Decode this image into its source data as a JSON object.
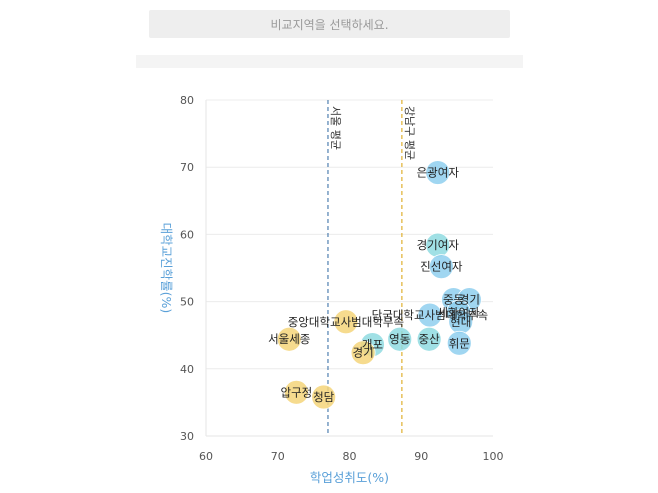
{
  "region_select": {
    "placeholder": "비교지역을 선택하세요."
  },
  "chart_data": {
    "type": "scatter",
    "xlabel": "학업성취도(%)",
    "ylabel": "대학교진학률(%)",
    "xlim": [
      60,
      100
    ],
    "ylim": [
      30,
      80
    ],
    "xticks": [
      60,
      70,
      80,
      90,
      100
    ],
    "yticks": [
      30,
      40,
      50,
      60,
      70,
      80
    ],
    "grid": "horizontal",
    "reference_lines": [
      {
        "label": "서울 평균",
        "x": 77,
        "color": "#4f7fb0"
      },
      {
        "label": "강남구 평균",
        "x": 87.3,
        "color": "#e0b030"
      }
    ],
    "points": [
      {
        "label": "은광여자",
        "x": 92.3,
        "y": 69.2,
        "color": "#8fcfee"
      },
      {
        "label": "경기여자",
        "x": 92.3,
        "y": 58.4,
        "color": "#8fdbe0"
      },
      {
        "label": "진선여자",
        "x": 92.8,
        "y": 55.2,
        "color": "#8fcfee"
      },
      {
        "label": "중동",
        "x": 94.5,
        "y": 50.3,
        "color": "#8fcfee"
      },
      {
        "label": "경기",
        "x": 96.7,
        "y": 50.3,
        "color": "#8fcfee"
      },
      {
        "label": "세화여자",
        "x": 95.2,
        "y": 48.4,
        "color": "#8fcfee"
      },
      {
        "label": "단국대학교사범대학부속",
        "x": 91.2,
        "y": 48.0,
        "color": "#8fcfee"
      },
      {
        "label": "현대",
        "x": 95.5,
        "y": 47.0,
        "color": "#8fcfee"
      },
      {
        "label": "영동",
        "x": 87.0,
        "y": 44.4,
        "color": "#8fdbe0"
      },
      {
        "label": "중산",
        "x": 91.1,
        "y": 44.4,
        "color": "#8fdbe0"
      },
      {
        "label": "휘문",
        "x": 95.3,
        "y": 43.8,
        "color": "#8fcfee"
      },
      {
        "label": "개포",
        "x": 83.2,
        "y": 43.6,
        "color": "#8fdbe0"
      },
      {
        "label": "중앙대학교사범대학부속",
        "x": 79.5,
        "y": 47.0,
        "color": "#f5d57a"
      },
      {
        "label": "서울세종",
        "x": 71.6,
        "y": 44.4,
        "color": "#f5d57a"
      },
      {
        "label": "경기",
        "x": 81.9,
        "y": 42.4,
        "color": "#f5d57a"
      },
      {
        "label": "압구정",
        "x": 72.6,
        "y": 36.5,
        "color": "#f5d57a"
      },
      {
        "label": "청담",
        "x": 76.4,
        "y": 35.8,
        "color": "#f5d57a"
      }
    ]
  }
}
